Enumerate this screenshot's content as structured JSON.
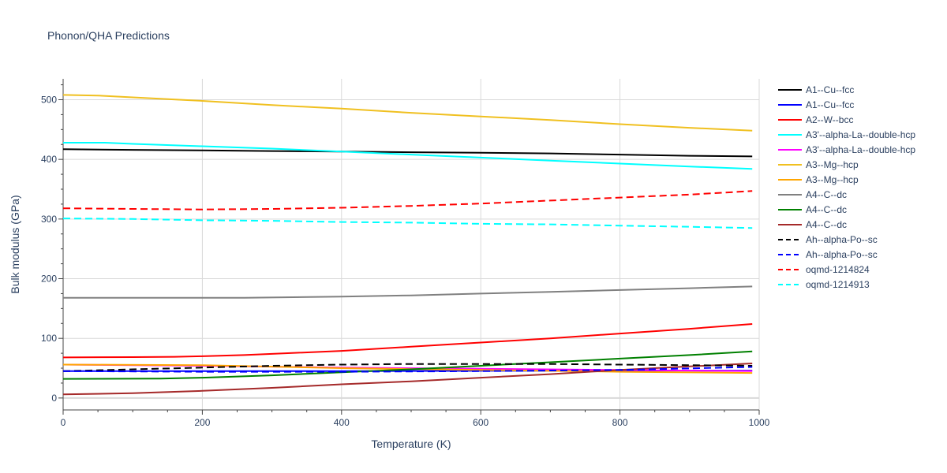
{
  "chart_data": {
    "type": "line",
    "title": "Phonon/QHA Predictions",
    "xlabel": "Temperature (K)",
    "ylabel": "Bulk modulus (GPa)",
    "xlim": [
      0,
      1000
    ],
    "ylim": [
      -20,
      535
    ],
    "xticks": [
      0,
      200,
      400,
      600,
      800,
      1000
    ],
    "yticks": [
      0,
      100,
      200,
      300,
      400,
      500
    ],
    "grid": true,
    "legend_position": "right",
    "series": [
      {
        "name": "A1--Cu--fcc",
        "color": "#000000",
        "dash": "solid",
        "x": [
          0,
          100,
          200,
          300,
          400,
          500,
          600,
          700,
          800,
          900,
          990
        ],
        "y": [
          417,
          416,
          415,
          414,
          413,
          412,
          411,
          410,
          408,
          406,
          405
        ]
      },
      {
        "name": "A1--Cu--fcc",
        "color": "#0000ff",
        "dash": "solid",
        "x": [
          0,
          200,
          400,
          600,
          800,
          990
        ],
        "y": [
          45,
          45,
          45,
          45.5,
          46,
          46
        ]
      },
      {
        "name": "A2--W--bcc",
        "color": "#ff0000",
        "dash": "solid",
        "x": [
          0,
          100,
          160,
          200,
          260,
          300,
          400,
          500,
          600,
          700,
          800,
          900,
          990
        ],
        "y": [
          68,
          68.5,
          69,
          70,
          72,
          74,
          79,
          86,
          93,
          100,
          108,
          116,
          124
        ]
      },
      {
        "name": "A3'--alpha-La--double-hcp",
        "color": "#00ffff",
        "dash": "solid",
        "x": [
          0,
          60,
          100,
          200,
          300,
          400,
          500,
          600,
          700,
          800,
          900,
          990
        ],
        "y": [
          428,
          428,
          426,
          422,
          418,
          413,
          408,
          403,
          398,
          393,
          388,
          384
        ]
      },
      {
        "name": "A3'--alpha-La--double-hcp",
        "color": "#ff00ff",
        "dash": "solid",
        "x": [
          0,
          200,
          400,
          600,
          800,
          990
        ],
        "y": [
          56,
          54,
          51,
          49,
          47,
          45
        ]
      },
      {
        "name": "A3--Mg--hcp",
        "color": "#f0c020",
        "dash": "solid",
        "x": [
          0,
          50,
          100,
          200,
          300,
          400,
          500,
          600,
          700,
          800,
          900,
          990
        ],
        "y": [
          508,
          507,
          504,
          498,
          491,
          485,
          478,
          472,
          466,
          459,
          453,
          448
        ]
      },
      {
        "name": "A3--Mg--hcp",
        "color": "#ffa500",
        "dash": "solid",
        "x": [
          0,
          200,
          400,
          600,
          800,
          990
        ],
        "y": [
          56,
          55,
          50,
          47,
          44,
          42
        ]
      },
      {
        "name": "A4--C--dc",
        "color": "#808080",
        "dash": "solid",
        "x": [
          0,
          100,
          260,
          400,
          500,
          600,
          700,
          800,
          900,
          990
        ],
        "y": [
          168,
          168,
          168,
          170,
          172,
          175,
          178,
          181,
          184,
          187
        ]
      },
      {
        "name": "A4--C--dc",
        "color": "#008000",
        "dash": "solid",
        "x": [
          0,
          140,
          200,
          300,
          400,
          500,
          600,
          700,
          800,
          900,
          990
        ],
        "y": [
          32,
          32.5,
          34,
          38,
          43,
          48,
          54,
          60,
          66,
          72,
          78
        ]
      },
      {
        "name": "A4--C--dc",
        "color": "#a52a2a",
        "dash": "solid",
        "x": [
          0,
          100,
          200,
          300,
          400,
          500,
          600,
          700,
          800,
          900,
          990
        ],
        "y": [
          6,
          8,
          12,
          17,
          23,
          28,
          34,
          40,
          47,
          53,
          58
        ]
      },
      {
        "name": "Ah--alpha-Po--sc",
        "color": "#000000",
        "dash": "dash",
        "x": [
          0,
          100,
          200,
          300,
          400,
          500,
          600,
          700,
          800,
          900,
          990
        ],
        "y": [
          45,
          48,
          51,
          54,
          56,
          57,
          57,
          57,
          56,
          55,
          54
        ]
      },
      {
        "name": "Ah--alpha-Po--sc",
        "color": "#0000ff",
        "dash": "dash",
        "x": [
          0,
          200,
          400,
          600,
          800,
          990
        ],
        "y": [
          45,
          44,
          44,
          45,
          47,
          52
        ]
      },
      {
        "name": "oqmd-1214824",
        "color": "#ff0000",
        "dash": "dash",
        "x": [
          0,
          100,
          200,
          300,
          400,
          500,
          600,
          700,
          800,
          900,
          990
        ],
        "y": [
          318,
          317,
          316,
          317,
          319,
          322,
          326,
          331,
          336,
          341,
          347
        ]
      },
      {
        "name": "oqmd-1214913",
        "color": "#00ffff",
        "dash": "dash",
        "x": [
          0,
          100,
          200,
          300,
          400,
          500,
          600,
          700,
          800,
          900,
          990
        ],
        "y": [
          301,
          300,
          298,
          297,
          295,
          294,
          292,
          291,
          289,
          287,
          285
        ]
      }
    ]
  }
}
